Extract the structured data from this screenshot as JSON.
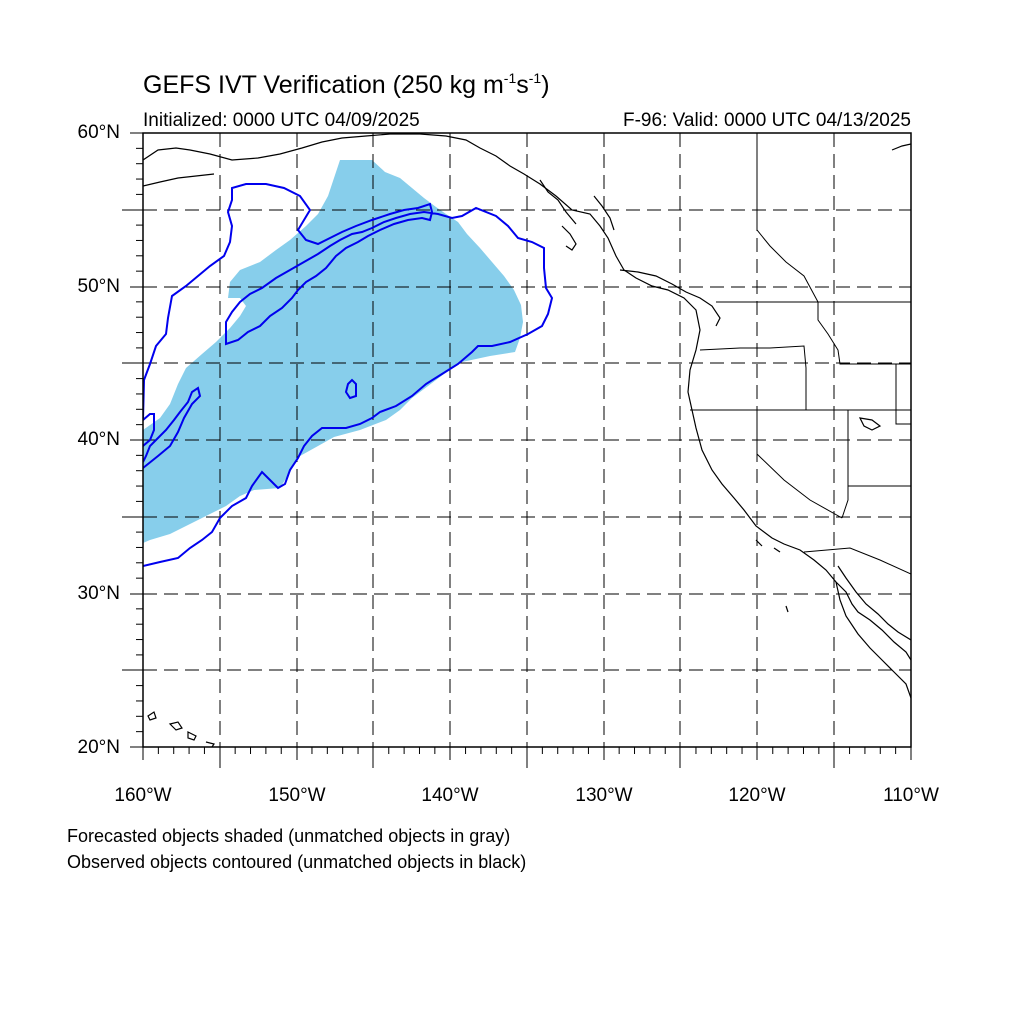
{
  "title": {
    "main": "GEFS IVT Verification (250 kg m",
    "sup1": "-1",
    "mid": "s",
    "sup2": "-1",
    "end": ")"
  },
  "subtitle": {
    "initialized": "Initialized: 0000 UTC 04/09/2025",
    "valid": "F-96: Valid: 0000 UTC 04/13/2025"
  },
  "axes": {
    "lat_labels": [
      "60°N",
      "50°N",
      "40°N",
      "30°N",
      "20°N"
    ],
    "lon_labels": [
      "160°W",
      "150°W",
      "140°W",
      "130°W",
      "120°W",
      "110°W"
    ],
    "lat_range": [
      20,
      60
    ],
    "lon_range": [
      -160,
      -110
    ],
    "grid_spacing_deg": 5,
    "grid": true
  },
  "notes": {
    "forecast": "Forecasted objects shaded (unmatched objects in gray)",
    "observed": "Observed objects contoured (unmatched objects in black)"
  },
  "colors": {
    "forecast_fill": "#87ceeb",
    "observed_contour": "#0000ee",
    "coastline": "#000000",
    "grid": "#000000"
  }
}
